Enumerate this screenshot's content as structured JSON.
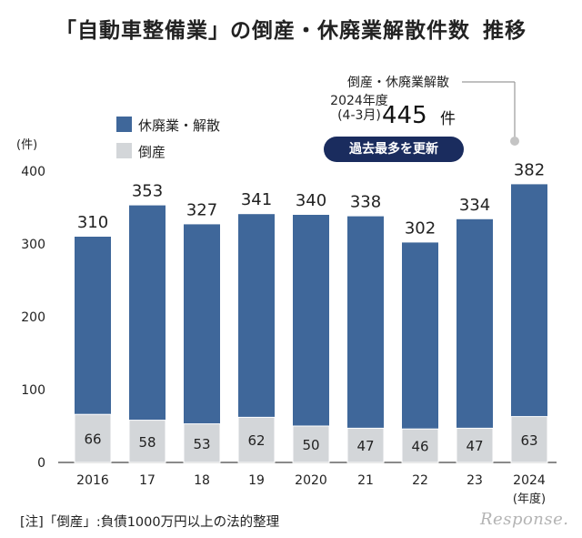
{
  "title": {
    "main": "「自動車整備業」の倒産・休廃業解散件数",
    "suffix": "推移"
  },
  "annotation": {
    "label": "倒産・休廃業解散",
    "period_line1": "2024年度",
    "period_line2": "(4-3月)",
    "value": "445",
    "unit": "件",
    "badge": "過去最多を更新"
  },
  "note": "[注]「倒産」:負債1000万円以上の法的整理",
  "watermark": "Response.",
  "colors": {
    "kyuhaigyo": "#3f679a",
    "tosan": "#d3d6d9",
    "badge": "#1a2c5e",
    "axis": "#444444"
  },
  "chart_data": {
    "type": "bar",
    "stacked": false,
    "y_unit_label": "(件)",
    "ylim": [
      0,
      400
    ],
    "yticks": [
      "0",
      "100",
      "200",
      "300",
      "400"
    ],
    "grid": false,
    "legend_position": "top-left",
    "categories": [
      "2016",
      "17",
      "18",
      "19",
      "2020",
      "21",
      "22",
      "23",
      "2024"
    ],
    "x_unit_label": "(年度)",
    "series": [
      {
        "name": "休廃業・解散",
        "color": "#3f679a",
        "values": [
          310,
          353,
          327,
          341,
          340,
          338,
          302,
          334,
          382
        ]
      },
      {
        "name": "倒産",
        "color": "#d3d6d9",
        "values": [
          66,
          58,
          53,
          62,
          50,
          47,
          46,
          47,
          63
        ]
      }
    ]
  }
}
